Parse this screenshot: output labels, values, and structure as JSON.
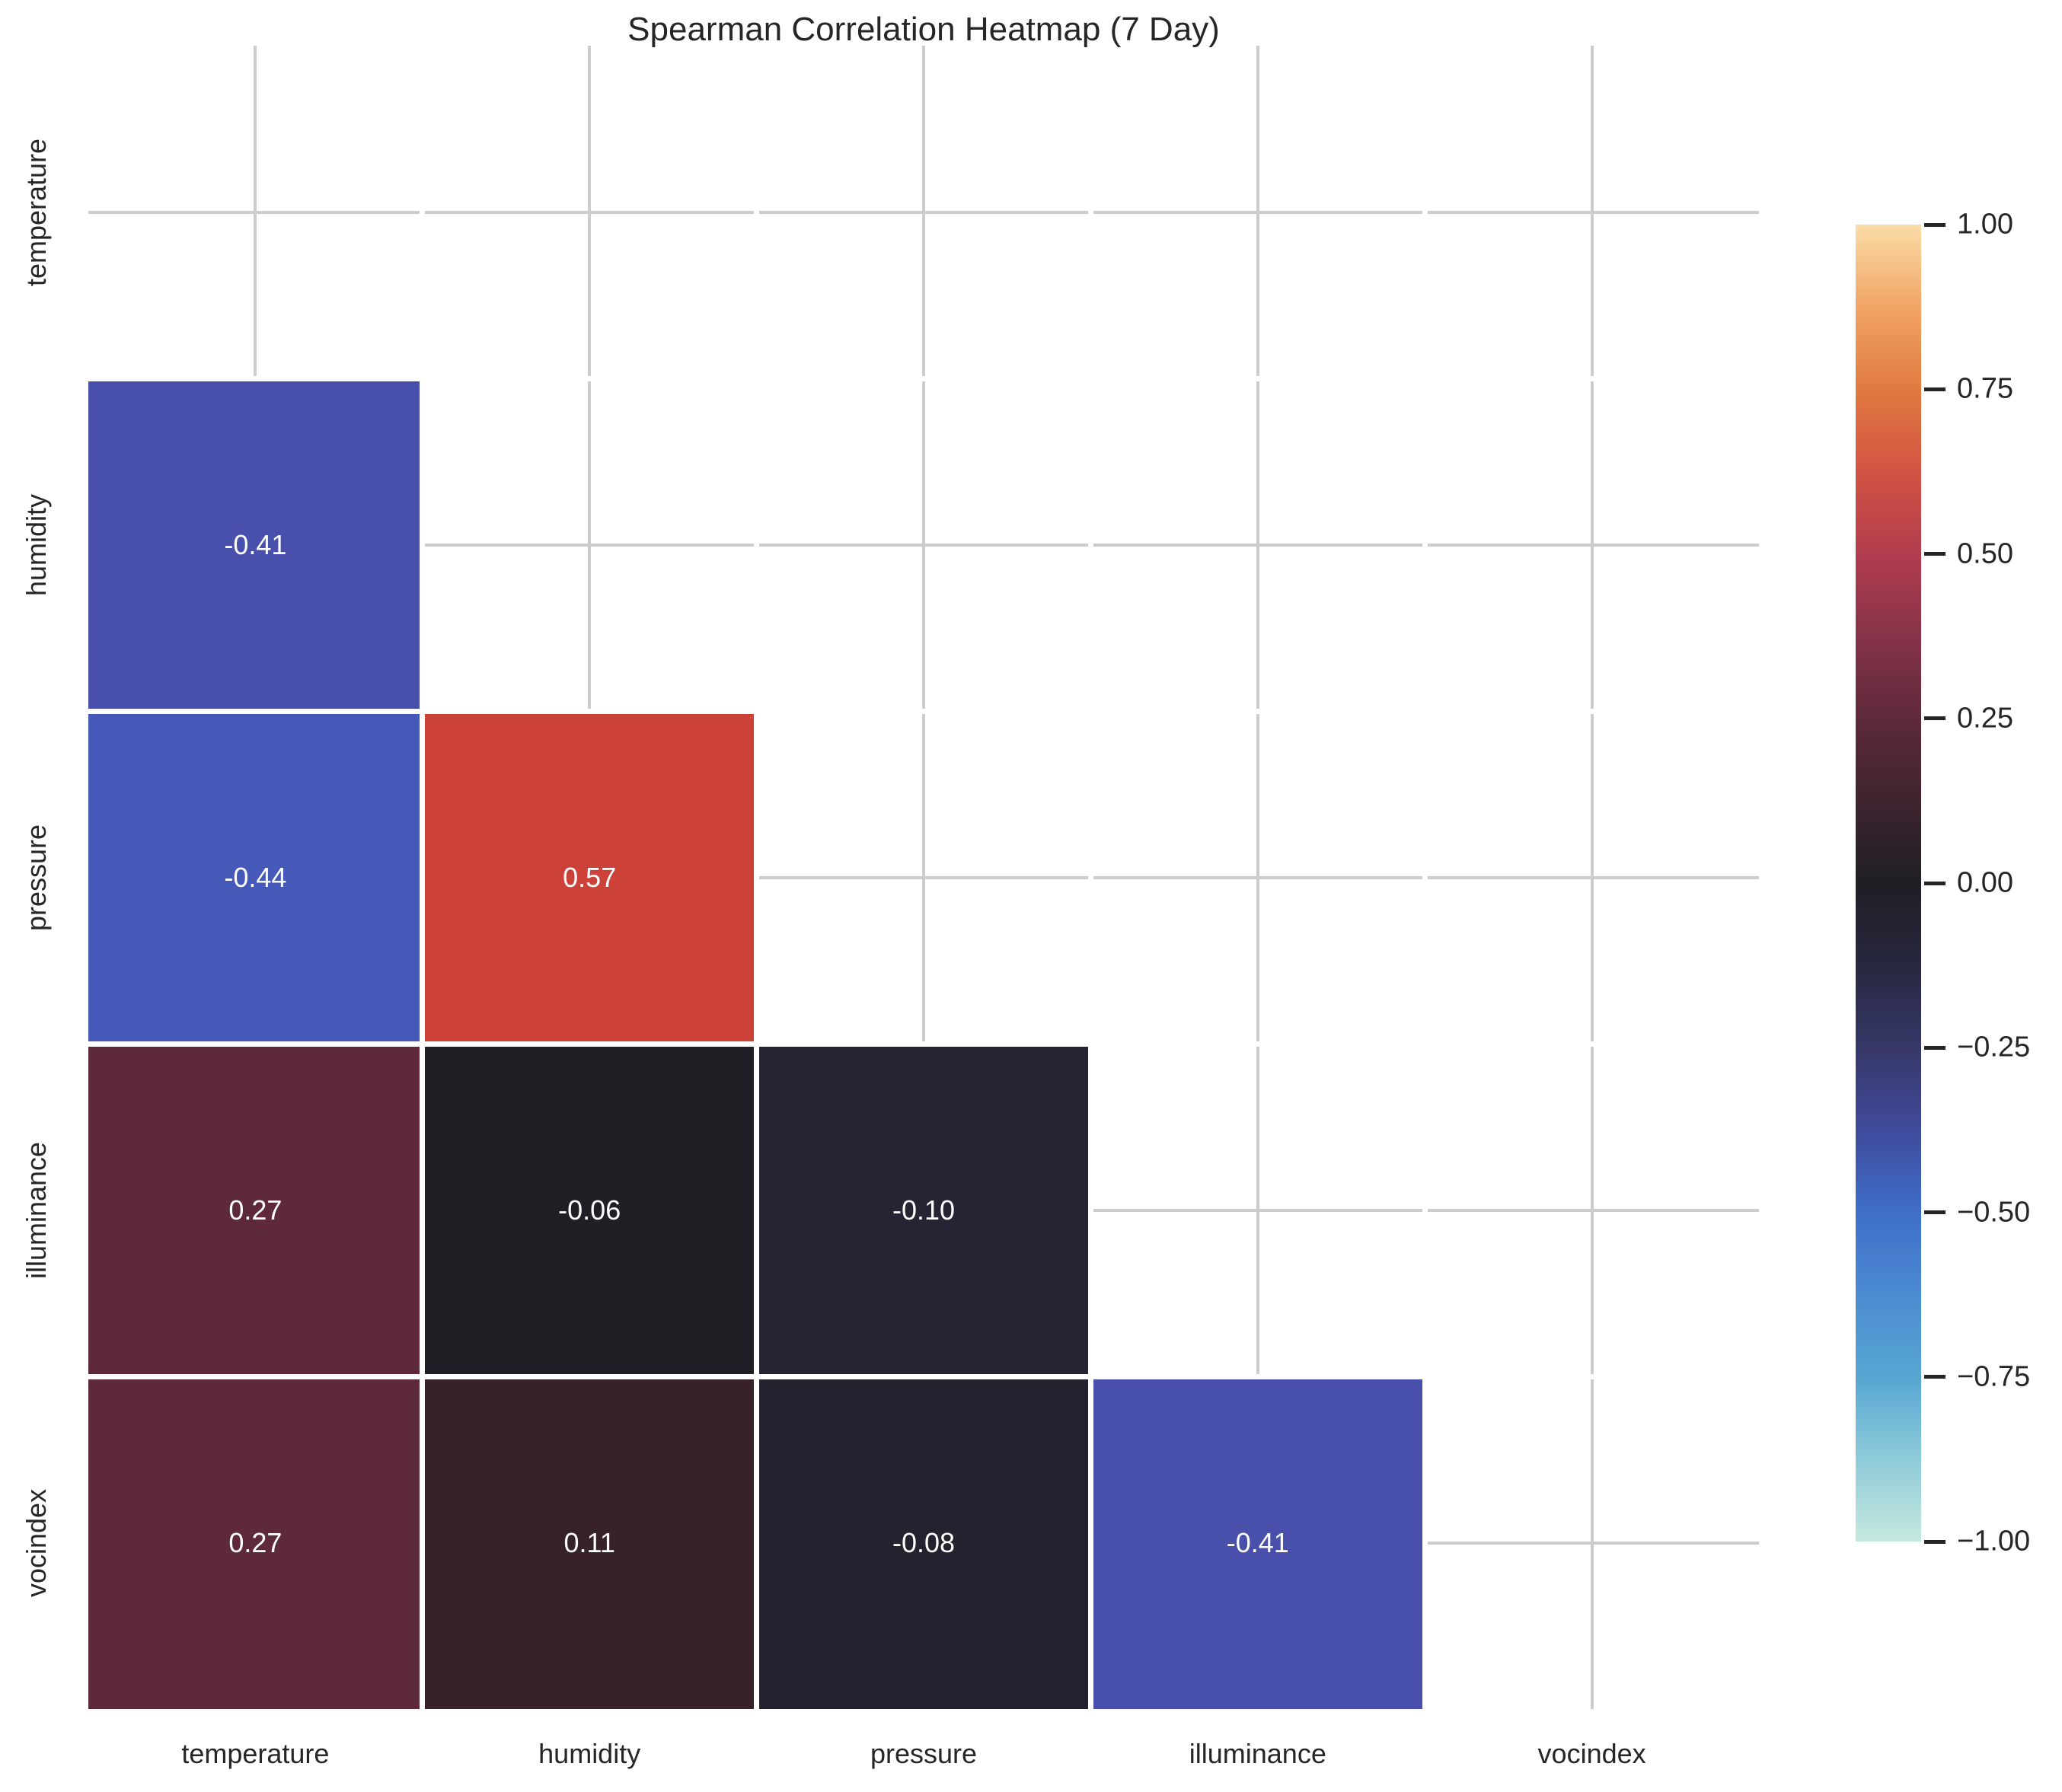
{
  "chart_data": {
    "type": "heatmap",
    "title": "Spearman Correlation Heatmap (7 Day)",
    "correlation_method": "spearman",
    "variables": [
      "temperature",
      "humidity",
      "pressure",
      "illuminance",
      "vocindex"
    ],
    "x_tick_labels": [
      "temperature",
      "humidity",
      "pressure",
      "illuminance",
      "vocindex"
    ],
    "y_tick_labels": [
      "temperature",
      "humidity",
      "pressure",
      "illuminance",
      "vocindex"
    ],
    "masked_region": "upper-triangle-including-diagonal",
    "cells": [
      {
        "row": "humidity",
        "col": "temperature",
        "value": -0.41,
        "label": "-0.41",
        "color": "#4950ab"
      },
      {
        "row": "pressure",
        "col": "temperature",
        "value": -0.44,
        "label": "-0.44",
        "color": "#4659b8"
      },
      {
        "row": "pressure",
        "col": "humidity",
        "value": 0.57,
        "label": "0.57",
        "color": "#cd4238"
      },
      {
        "row": "illuminance",
        "col": "temperature",
        "value": 0.27,
        "label": "0.27",
        "color": "#5e2a3a"
      },
      {
        "row": "illuminance",
        "col": "humidity",
        "value": -0.06,
        "label": "-0.06",
        "color": "#211f26"
      },
      {
        "row": "illuminance",
        "col": "pressure",
        "value": -0.1,
        "label": "-0.10",
        "color": "#262433"
      },
      {
        "row": "vocindex",
        "col": "temperature",
        "value": 0.27,
        "label": "0.27",
        "color": "#5e2a3a"
      },
      {
        "row": "vocindex",
        "col": "humidity",
        "value": 0.11,
        "label": "0.11",
        "color": "#362228"
      },
      {
        "row": "vocindex",
        "col": "pressure",
        "value": -0.08,
        "label": "-0.08",
        "color": "#24222e"
      },
      {
        "row": "vocindex",
        "col": "illuminance",
        "value": -0.41,
        "label": "-0.41",
        "color": "#4950ab"
      }
    ],
    "colorbar": {
      "colormap": "icefire",
      "vmin": -1,
      "vmax": 1,
      "tick_values": [
        1.0,
        0.75,
        0.5,
        0.25,
        0.0,
        -0.25,
        -0.5,
        -0.75,
        -1.0
      ],
      "tick_labels": [
        "1.00",
        "0.75",
        "0.50",
        "0.25",
        "0.00",
        "−0.25",
        "−0.50",
        "−0.75",
        "−1.00"
      ],
      "gradient_stops": [
        {
          "value": 1.0,
          "color": "#fbdca8"
        },
        {
          "value": 0.875,
          "color": "#f1a566"
        },
        {
          "value": 0.75,
          "color": "#e07a40"
        },
        {
          "value": 0.625,
          "color": "#d25343"
        },
        {
          "value": 0.5,
          "color": "#b13c4d"
        },
        {
          "value": 0.375,
          "color": "#873349"
        },
        {
          "value": 0.25,
          "color": "#5e2a3a"
        },
        {
          "value": 0.125,
          "color": "#3e242f"
        },
        {
          "value": 0.0,
          "color": "#1f1e24"
        },
        {
          "value": -0.125,
          "color": "#27273f"
        },
        {
          "value": -0.25,
          "color": "#373868"
        },
        {
          "value": -0.375,
          "color": "#3f4b9b"
        },
        {
          "value": -0.5,
          "color": "#3e6ec9"
        },
        {
          "value": -0.625,
          "color": "#4c8bd0"
        },
        {
          "value": -0.75,
          "color": "#56a6d2"
        },
        {
          "value": -0.875,
          "color": "#8ecbd9"
        },
        {
          "value": -1.0,
          "color": "#c6e9de"
        }
      ]
    },
    "grid_on": true,
    "grid_color": "#cccccc",
    "cell_separator_color": "#ffffff",
    "annotation_color": "#ffffff",
    "text_color": "#262626",
    "background_color": "#ffffff"
  }
}
